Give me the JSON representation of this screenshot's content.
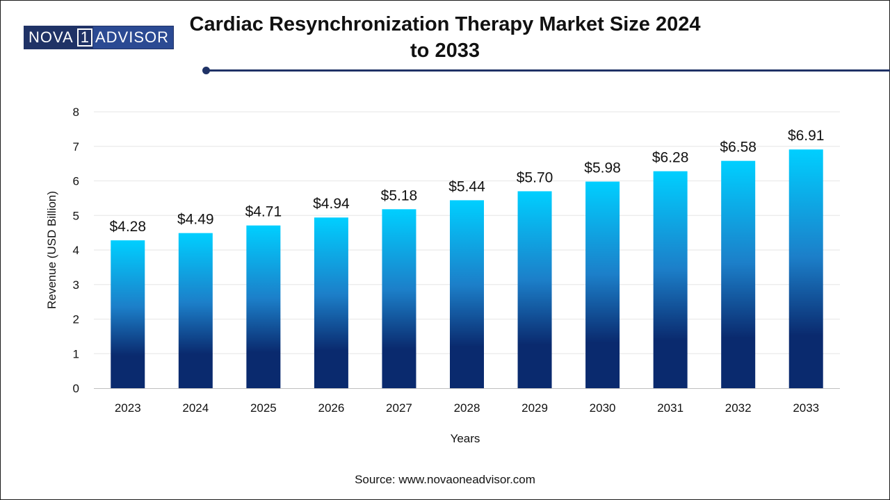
{
  "brand": {
    "part_a": "NOVA",
    "digit": "1",
    "part_b": "ADVISOR"
  },
  "colors": {
    "bar_top": "#00cfff",
    "bar_bottom": "#0a2a6e",
    "rule": "#1f3266",
    "grid": "#e6e6e6"
  },
  "source": "Source: www.novaoneadvisor.com",
  "chart_data": {
    "type": "bar",
    "title": "Cardiac Resynchronization Therapy Market Size 2024 to 2033",
    "xlabel": "Years",
    "ylabel": "Revenue (USD Billion)",
    "ylim": [
      0,
      8
    ],
    "yticks": [
      0,
      1,
      2,
      3,
      4,
      5,
      6,
      7,
      8
    ],
    "grid": true,
    "categories": [
      "2023",
      "2024",
      "2025",
      "2026",
      "2027",
      "2028",
      "2029",
      "2030",
      "2031",
      "2032",
      "2033"
    ],
    "values": [
      4.28,
      4.49,
      4.71,
      4.94,
      5.18,
      5.44,
      5.7,
      5.98,
      6.28,
      6.58,
      6.91
    ],
    "data_labels": [
      "$4.28",
      "$4.49",
      "$4.71",
      "$4.94",
      "$5.18",
      "$5.44",
      "$5.70",
      "$5.98",
      "$6.28",
      "$6.58",
      "$6.91"
    ]
  }
}
